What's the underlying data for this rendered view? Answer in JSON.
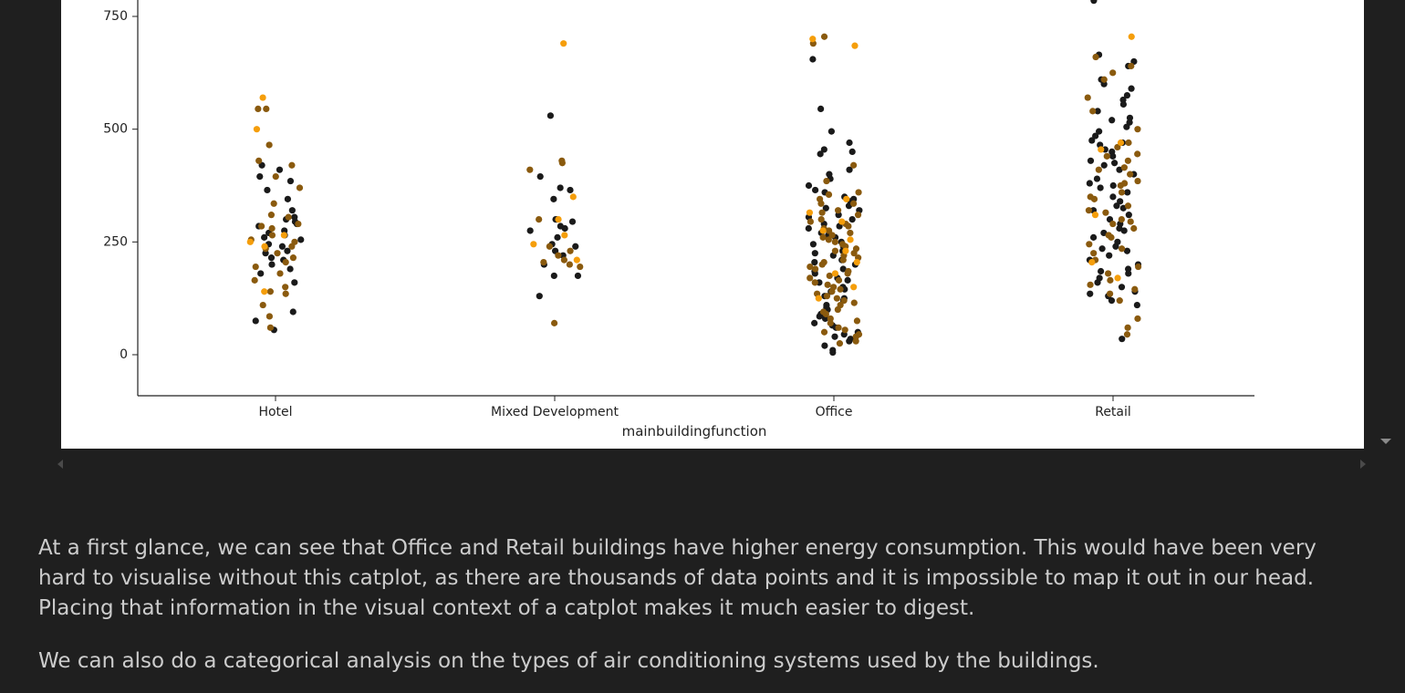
{
  "chart_data": {
    "type": "scatter",
    "subtype": "strip (catplot)",
    "xlabel": "mainbuildingfunction",
    "ylabel": "",
    "categories": [
      "Hotel",
      "Mixed Development",
      "Office",
      "Retail"
    ],
    "y_ticks": [
      "0",
      "250",
      "500",
      "750"
    ],
    "ylim": [
      -90,
      800
    ],
    "colors": {
      "dark": "#1a1a1a",
      "brown": "#8a5a0e",
      "orange": "#f59e0b"
    },
    "series": [
      {
        "category": "Hotel",
        "dark": [
          210,
          225,
          240,
          255,
          265,
          275,
          285,
          295,
          300,
          320,
          345,
          365,
          385,
          395,
          410,
          420,
          180,
          190,
          160,
          95,
          75,
          55,
          230,
          245,
          260,
          270,
          290,
          305,
          215,
          200
        ],
        "brown": [
          420,
          430,
          545,
          545,
          465,
          395,
          370,
          335,
          305,
          285,
          265,
          250,
          240,
          235,
          225,
          215,
          205,
          195,
          180,
          165,
          150,
          140,
          135,
          110,
          85,
          60,
          310,
          290,
          280,
          255
        ],
        "orange": [
          570,
          500,
          265,
          250,
          240,
          140
        ]
      },
      {
        "category": "Mixed Development",
        "dark": [
          530,
          395,
          365,
          345,
          300,
          295,
          285,
          280,
          275,
          260,
          245,
          230,
          220,
          200,
          175,
          175,
          130,
          300,
          240,
          370
        ],
        "brown": [
          410,
          430,
          425,
          240,
          230,
          210,
          205,
          200,
          195,
          70,
          300,
          220
        ],
        "orange": [
          690,
          350,
          300,
          265,
          245,
          210
        ]
      },
      {
        "category": "Office",
        "dark": [
          655,
          545,
          495,
          470,
          455,
          450,
          445,
          410,
          400,
          390,
          375,
          360,
          350,
          340,
          330,
          320,
          310,
          300,
          290,
          280,
          270,
          260,
          250,
          240,
          230,
          220,
          210,
          200,
          190,
          180,
          170,
          160,
          150,
          140,
          130,
          120,
          110,
          100,
          90,
          80,
          70,
          60,
          50,
          45,
          40,
          35,
          30,
          20,
          10,
          5,
          365,
          345,
          325,
          305,
          285,
          265,
          245,
          225,
          205,
          185,
          165,
          145,
          125,
          105,
          85,
          65
        ],
        "brown": [
          800,
          705,
          690,
          420,
          385,
          360,
          345,
          335,
          320,
          310,
          300,
          290,
          280,
          270,
          260,
          250,
          240,
          230,
          220,
          210,
          200,
          190,
          180,
          170,
          160,
          150,
          140,
          130,
          120,
          110,
          100,
          90,
          80,
          70,
          60,
          50,
          40,
          30,
          25,
          355,
          335,
          315,
          295,
          275,
          255,
          235,
          215,
          195,
          175,
          155,
          135,
          115,
          95,
          75,
          55,
          45,
          285,
          265,
          245,
          225,
          205,
          185,
          165,
          145,
          125
        ],
        "orange": [
          700,
          685,
          345,
          315,
          295,
          275,
          255,
          230,
          205,
          180,
          150,
          125
        ]
      },
      {
        "category": "Retail",
        "dark": [
          785,
          665,
          650,
          640,
          610,
          600,
          590,
          575,
          565,
          555,
          540,
          525,
          515,
          505,
          495,
          485,
          475,
          465,
          455,
          450,
          440,
          430,
          420,
          410,
          400,
          390,
          380,
          370,
          360,
          350,
          340,
          330,
          320,
          310,
          300,
          290,
          280,
          270,
          260,
          250,
          240,
          230,
          220,
          210,
          200,
          190,
          180,
          170,
          160,
          150,
          140,
          130,
          120,
          110,
          35,
          520,
          470,
          425,
          375,
          325,
          275,
          235,
          185,
          135
        ],
        "brown": [
          660,
          640,
          625,
          610,
          570,
          540,
          500,
          470,
          460,
          445,
          430,
          415,
          400,
          385,
          375,
          360,
          345,
          330,
          315,
          300,
          290,
          280,
          260,
          245,
          235,
          225,
          210,
          195,
          180,
          165,
          155,
          145,
          135,
          120,
          80,
          60,
          45,
          440,
          410,
          380,
          350,
          320,
          295,
          265
        ],
        "orange": [
          705,
          470,
          455,
          310,
          205,
          170
        ]
      }
    ]
  },
  "markdown": {
    "paragraph_1": "At a first glance, we can see that Office and Retail buildings have higher energy consumption. This would have been very hard to visualise without this catplot, as there are thousands of data points and it is impossible to map it out in our head. Placing that information in the visual context of a catplot makes it much easier to digest.",
    "paragraph_2": "We can also do a categorical analysis on the types of air conditioning systems used by the buildings."
  },
  "icons": {
    "scroll_left": "scroll-left-arrow-icon",
    "scroll_right": "scroll-right-arrow-icon",
    "collapse": "collapse-output-arrow-icon"
  }
}
